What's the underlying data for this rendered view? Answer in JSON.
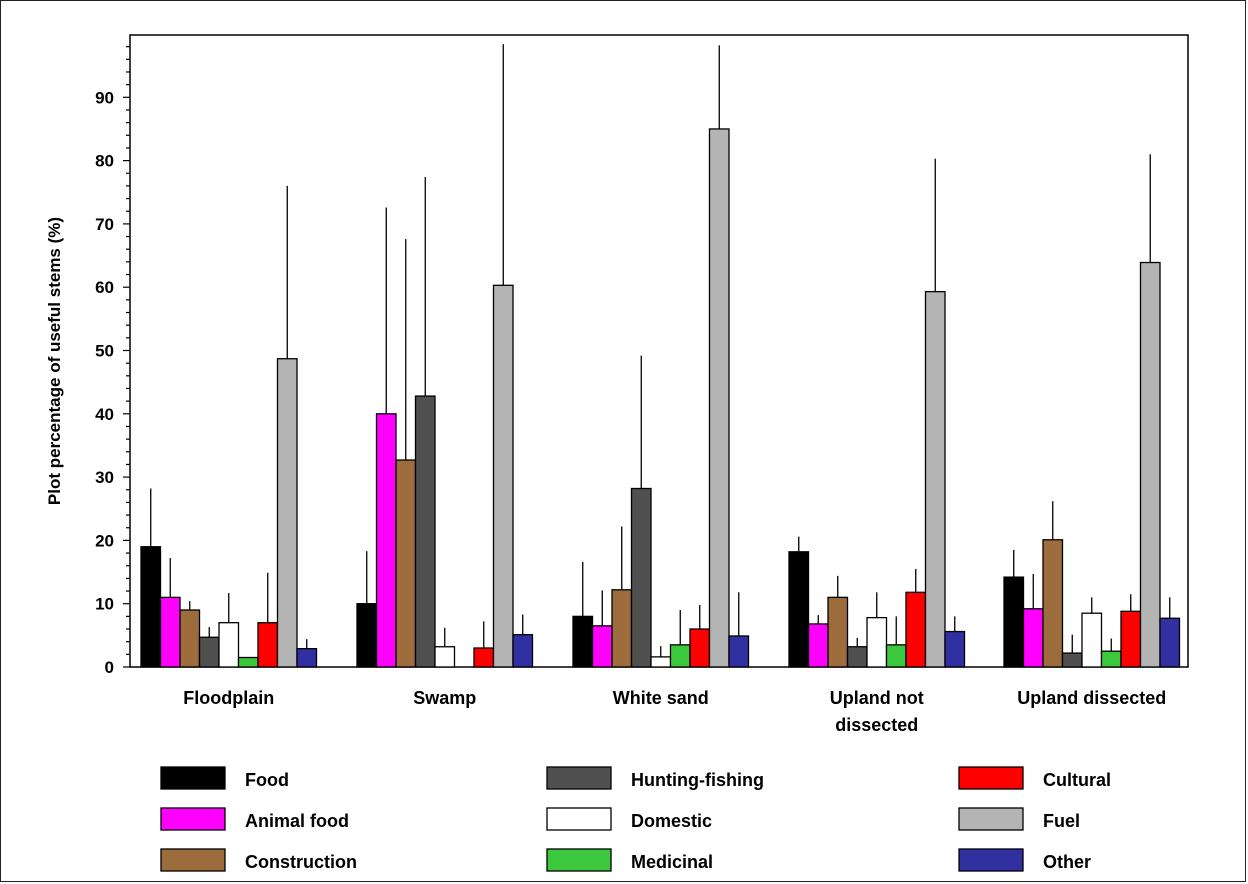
{
  "chart_data": {
    "type": "bar",
    "title": "",
    "xlabel": "",
    "ylabel": "Plot percentage of useful stems (%)",
    "ylim": [
      0,
      100
    ],
    "yticks": [
      0,
      10,
      20,
      30,
      40,
      50,
      60,
      70,
      80,
      90
    ],
    "grid": false,
    "legend_position": "bottom",
    "categories": [
      [
        "Floodplain"
      ],
      [
        "Swamp"
      ],
      [
        "White sand"
      ],
      [
        "Upland not",
        "dissected"
      ],
      [
        "Upland dissected"
      ]
    ],
    "series": [
      {
        "name": "Food",
        "color": "#000000",
        "values": [
          19.0,
          10.0,
          8.0,
          18.2,
          14.2
        ],
        "err_upper": [
          28.2,
          18.3,
          16.6,
          20.6,
          18.5
        ]
      },
      {
        "name": "Animal food",
        "color": "#ff00ff",
        "values": [
          11.0,
          40.0,
          6.5,
          6.8,
          9.2
        ],
        "err_upper": [
          17.2,
          72.6,
          12.1,
          8.2,
          14.7
        ]
      },
      {
        "name": "Construction",
        "color": "#9c6c3c",
        "values": [
          9.0,
          32.7,
          12.2,
          11.0,
          20.1
        ],
        "err_upper": [
          10.4,
          67.6,
          22.2,
          14.4,
          26.2
        ]
      },
      {
        "name": "Hunting-fishing",
        "color": "#505050",
        "values": [
          4.7,
          42.8,
          28.2,
          3.2,
          2.2
        ],
        "err_upper": [
          6.3,
          77.4,
          49.2,
          4.6,
          5.1
        ]
      },
      {
        "name": "Domestic",
        "color": "#ffffff",
        "values": [
          7.0,
          3.2,
          1.6,
          7.8,
          8.5
        ],
        "err_upper": [
          11.7,
          6.2,
          3.3,
          11.8,
          11.0
        ]
      },
      {
        "name": "Medicinal",
        "color": "#3cc83c",
        "values": [
          1.5,
          0,
          3.5,
          3.5,
          2.5
        ],
        "err_upper": [
          1.5,
          0,
          9.0,
          8.0,
          4.5
        ]
      },
      {
        "name": "Cultural",
        "color": "#ff0000",
        "values": [
          7.0,
          3.0,
          6.0,
          11.8,
          8.8
        ],
        "err_upper": [
          14.9,
          7.2,
          9.8,
          15.5,
          11.5
        ]
      },
      {
        "name": "Fuel",
        "color": "#b4b4b4",
        "values": [
          48.7,
          60.3,
          85.0,
          59.3,
          63.9
        ],
        "err_upper": [
          76.0,
          98.4,
          98.2,
          80.3,
          81.0
        ]
      },
      {
        "name": "Other",
        "color": "#3030a0",
        "values": [
          2.9,
          5.1,
          4.9,
          5.6,
          7.7
        ],
        "err_upper": [
          4.4,
          8.3,
          11.8,
          8.0,
          11.0
        ]
      }
    ]
  }
}
